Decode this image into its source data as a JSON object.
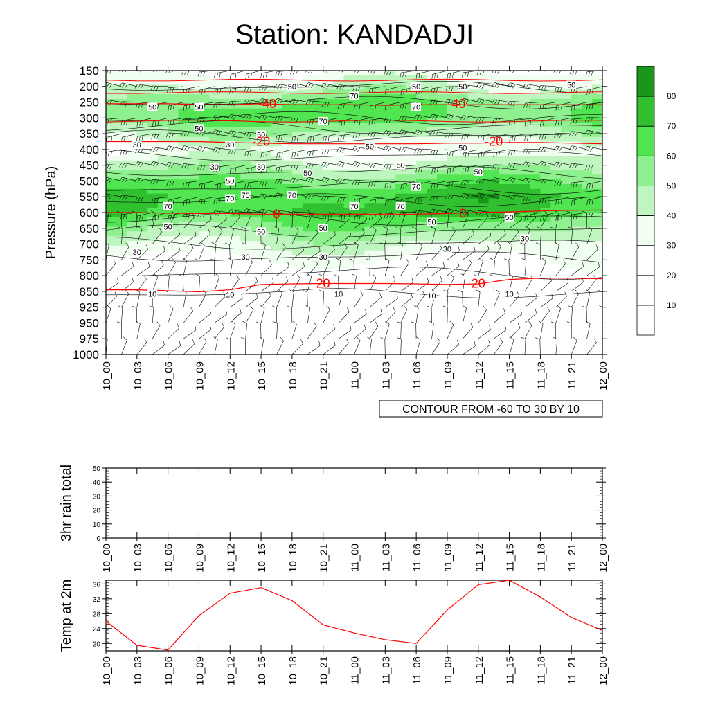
{
  "title": "Station: KANDADJI",
  "time_labels": [
    "10_00",
    "10_03",
    "10_06",
    "10_09",
    "10_12",
    "10_15",
    "10_18",
    "10_21",
    "11_00",
    "11_03",
    "11_06",
    "11_09",
    "11_12",
    "11_15",
    "11_18",
    "11_21",
    "12_00"
  ],
  "colors": {
    "shade": [
      "#ffffff",
      "#ffffff",
      "#ffffff",
      "#f0fff0",
      "#bff5bf",
      "#8ef08e",
      "#52e552",
      "#30c030",
      "#1a961a"
    ],
    "temp_contour": "#ff0000",
    "temp_line": "#ff0000"
  },
  "chart_data": [
    {
      "type": "heatmap",
      "title": "",
      "xlabel": "",
      "ylabel": "Pressure (hPa)",
      "y_ticks": [
        150,
        200,
        250,
        300,
        350,
        400,
        450,
        500,
        550,
        600,
        650,
        700,
        750,
        800,
        850,
        925,
        950,
        975,
        1000
      ],
      "info_label": "CONTOUR FROM -60 TO 30 BY 10",
      "colorbar": {
        "levels": [
          10,
          20,
          30,
          40,
          50,
          60,
          70,
          80
        ]
      },
      "rh_profile": [
        {
          "p": 150,
          "v": 30
        },
        {
          "p": 200,
          "v": 40
        },
        {
          "p": 250,
          "v": 60
        },
        {
          "p": 300,
          "v": 62
        },
        {
          "p": 350,
          "v": 48
        },
        {
          "p": 400,
          "v": 30
        },
        {
          "p": 450,
          "v": 45
        },
        {
          "p": 500,
          "v": 60
        },
        {
          "p": 550,
          "v": 72
        },
        {
          "p": 600,
          "v": 70
        },
        {
          "p": 650,
          "v": 55
        },
        {
          "p": 700,
          "v": 40
        },
        {
          "p": 750,
          "v": 28
        },
        {
          "p": 800,
          "v": 20
        },
        {
          "p": 850,
          "v": 15
        },
        {
          "p": 925,
          "v": 10
        },
        {
          "p": 975,
          "v": 8
        },
        {
          "p": 1000,
          "v": 8
        }
      ],
      "rh_labels": [
        {
          "t": 1.5,
          "p": 265,
          "text": "50"
        },
        {
          "t": 3.0,
          "p": 265,
          "text": "50"
        },
        {
          "t": 3.0,
          "p": 333,
          "text": "50"
        },
        {
          "t": 6.0,
          "p": 200,
          "text": "50"
        },
        {
          "t": 8.0,
          "p": 230,
          "text": "70"
        },
        {
          "t": 7.0,
          "p": 310,
          "text": "70"
        },
        {
          "t": 5.0,
          "p": 353,
          "text": "50"
        },
        {
          "t": 8.5,
          "p": 390,
          "text": "50"
        },
        {
          "t": 10.0,
          "p": 200,
          "text": "50"
        },
        {
          "t": 10.0,
          "p": 265,
          "text": "70"
        },
        {
          "t": 11.5,
          "p": 200,
          "text": "50"
        },
        {
          "t": 11.5,
          "p": 395,
          "text": "50"
        },
        {
          "t": 15.0,
          "p": 195,
          "text": "50"
        },
        {
          "t": 1.0,
          "p": 385,
          "text": "30"
        },
        {
          "t": 3.5,
          "p": 455,
          "text": "30"
        },
        {
          "t": 5.0,
          "p": 455,
          "text": "30"
        },
        {
          "t": 4.0,
          "p": 385,
          "text": "30"
        },
        {
          "t": 6.5,
          "p": 475,
          "text": "50"
        },
        {
          "t": 9.5,
          "p": 450,
          "text": "50"
        },
        {
          "t": 12.0,
          "p": 470,
          "text": "50"
        },
        {
          "t": 4.0,
          "p": 500,
          "text": "50"
        },
        {
          "t": 10.0,
          "p": 518,
          "text": "70"
        },
        {
          "t": 4.5,
          "p": 545,
          "text": "70"
        },
        {
          "t": 4.0,
          "p": 555,
          "text": "70"
        },
        {
          "t": 6.0,
          "p": 545,
          "text": "70"
        },
        {
          "t": 2.0,
          "p": 580,
          "text": "70"
        },
        {
          "t": 8.0,
          "p": 580,
          "text": "70"
        },
        {
          "t": 9.5,
          "p": 580,
          "text": "70"
        },
        {
          "t": 2.0,
          "p": 645,
          "text": "50"
        },
        {
          "t": 5.0,
          "p": 660,
          "text": "50"
        },
        {
          "t": 7.0,
          "p": 648,
          "text": "50"
        },
        {
          "t": 10.5,
          "p": 630,
          "text": "50"
        },
        {
          "t": 13.0,
          "p": 615,
          "text": "50"
        },
        {
          "t": 1.0,
          "p": 725,
          "text": "30"
        },
        {
          "t": 4.5,
          "p": 740,
          "text": "30"
        },
        {
          "t": 7.0,
          "p": 740,
          "text": "30"
        },
        {
          "t": 11.0,
          "p": 715,
          "text": "30"
        },
        {
          "t": 13.5,
          "p": 682,
          "text": "30"
        },
        {
          "t": 1.5,
          "p": 862,
          "text": "10"
        },
        {
          "t": 4.0,
          "p": 865,
          "text": "10"
        },
        {
          "t": 7.5,
          "p": 862,
          "text": "10"
        },
        {
          "t": 10.5,
          "p": 870,
          "text": "10"
        },
        {
          "t": 13.0,
          "p": 862,
          "text": "10"
        }
      ],
      "temp_contours": [
        {
          "label": "-40",
          "p": [
            255,
            255,
            255,
            258,
            258,
            255,
            258,
            258,
            258,
            260,
            258,
            258,
            258,
            258,
            258,
            258,
            258
          ]
        },
        {
          "label": "-20",
          "p": [
            375,
            375,
            375,
            375,
            378,
            380,
            382,
            382,
            382,
            382,
            382,
            380,
            380,
            378,
            378,
            380,
            382
          ]
        },
        {
          "label": "0",
          "p": [
            600,
            600,
            602,
            603,
            603,
            605,
            605,
            605,
            605,
            605,
            605,
            603,
            600,
            598,
            595,
            593,
            592
          ]
        },
        {
          "label": "20",
          "p": [
            845,
            845,
            848,
            852,
            845,
            828,
            826,
            825,
            825,
            825,
            826,
            828,
            826,
            812,
            808,
            808,
            810
          ]
        }
      ],
      "temp_labels": [
        {
          "t": 5.2,
          "p": 255,
          "text": "-40"
        },
        {
          "t": 11.3,
          "p": 255,
          "text": "-40"
        },
        {
          "t": 5.0,
          "p": 375,
          "text": "-20"
        },
        {
          "t": 12.5,
          "p": 375,
          "text": "-20"
        },
        {
          "t": 5.5,
          "p": 605,
          "text": "0"
        },
        {
          "t": 11.5,
          "p": 603,
          "text": "0"
        },
        {
          "t": 7.0,
          "p": 825,
          "text": "20"
        },
        {
          "t": 12.0,
          "p": 825,
          "text": "20"
        }
      ]
    },
    {
      "type": "line",
      "title": "",
      "ylabel": "3hr rain total",
      "ylim": [
        0,
        50
      ],
      "yticks": [
        0,
        10,
        20,
        30,
        40,
        50
      ],
      "values": [
        0,
        0,
        0,
        0,
        0,
        0,
        0,
        0,
        0,
        0,
        0,
        0,
        0,
        0,
        0,
        0,
        0
      ]
    },
    {
      "type": "line",
      "title": "",
      "ylabel": "Temp at 2m",
      "ylim": [
        18,
        37
      ],
      "yticks": [
        20,
        24,
        28,
        32,
        36
      ],
      "values": [
        26,
        19.5,
        18.2,
        27.5,
        33.5,
        35,
        31.5,
        25,
        22.8,
        21,
        20,
        29,
        35.8,
        37,
        32.5,
        27,
        23.5
      ]
    }
  ]
}
